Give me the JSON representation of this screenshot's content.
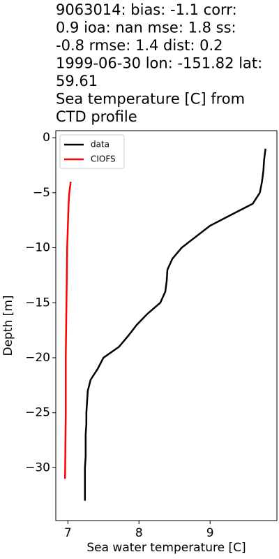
{
  "chart_data": {
    "type": "line",
    "title": [
      "9063014: bias: -1.1  corr:",
      "0.9  ioa: nan  mse: 1.8  ss:",
      "-0.8  rmse: 1.4  dist: 0.2",
      "1999-06-30 lon: -151.82 lat:",
      "59.61",
      "Sea temperature [C] from",
      "CTD profile"
    ],
    "x_label": "Sea water temperature [C]",
    "y_label": "Depth [m]",
    "xlim": [
      6.83,
      9.94
    ],
    "ylim": [
      -34.8,
      0.64
    ],
    "xticks": [
      7,
      8,
      9
    ],
    "yticks": [
      0,
      {
        "value": -5,
        "label": "−5"
      },
      {
        "value": -10,
        "label": "−10"
      },
      {
        "value": -15,
        "label": "−15"
      },
      {
        "value": -20,
        "label": "−20"
      },
      {
        "value": -25,
        "label": "−25"
      },
      {
        "value": -30,
        "label": "−30"
      }
    ],
    "legend": "upper left",
    "series": [
      {
        "name": "data",
        "color": "#000000",
        "x": [
          9.78,
          9.76,
          9.75,
          9.73,
          9.7,
          9.6,
          9.3,
          9.0,
          8.8,
          8.6,
          8.47,
          8.4,
          8.39,
          8.37,
          8.3,
          8.12,
          7.97,
          7.85,
          7.72,
          7.5,
          7.42,
          7.32,
          7.28,
          7.27,
          7.26,
          7.26,
          7.25,
          7.25,
          7.25,
          7.24,
          7.24,
          7.24,
          7.24
        ],
        "values": [
          -1,
          -2,
          -3,
          -4,
          -5,
          -6,
          -7,
          -8,
          -9,
          -10,
          -11,
          -12,
          -13,
          -14,
          -15,
          -16,
          -17,
          -18,
          -19,
          -20,
          -21,
          -22,
          -23,
          -24,
          -25,
          -26,
          -27,
          -28,
          -29,
          -30,
          -31,
          -32,
          -33
        ]
      },
      {
        "name": "CIOFS",
        "color": "#ff0000",
        "x": [
          7.04,
          7.02,
          7.01,
          7.0,
          6.99,
          6.98,
          6.97,
          6.97,
          6.96
        ],
        "values": [
          -4,
          -5,
          -6,
          -8,
          -10,
          -15,
          -20,
          -25,
          -31
        ]
      }
    ]
  }
}
